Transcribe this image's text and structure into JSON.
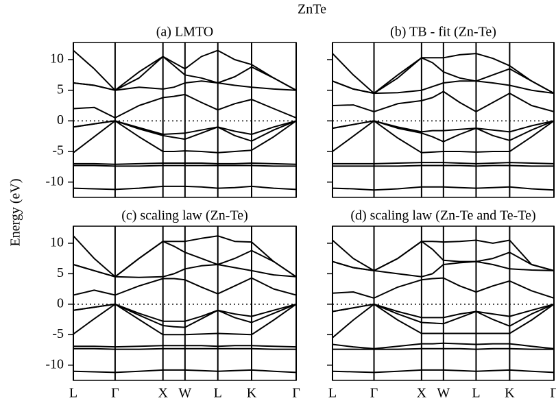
{
  "title": "ZnTe",
  "ylabel": "Energy (eV)",
  "chart_data": [
    {
      "type": "line",
      "title": "(a) LMTO",
      "line_color": "#000000",
      "zero_line": true,
      "x": [
        0,
        0.445,
        0.89,
        1.4,
        1.91,
        2.145,
        2.38,
        2.73,
        3.08,
        3.44,
        3.8,
        4.27,
        4.75
      ],
      "xlim": [
        0,
        4.75
      ],
      "ylim": [
        -12.5,
        12.8
      ],
      "xticks": [
        {
          "value": 0,
          "label": null
        },
        {
          "value": 0.89,
          "label": null
        },
        {
          "value": 1.91,
          "label": null
        },
        {
          "value": 2.38,
          "label": null
        },
        {
          "value": 3.08,
          "label": null
        },
        {
          "value": 3.8,
          "label": null
        },
        {
          "value": 4.75,
          "label": null
        }
      ],
      "yticks": [
        -10,
        -5,
        0,
        5,
        10
      ],
      "series": [
        {
          "values": [
            -11.0,
            -11.1,
            -11.2,
            -11.0,
            -10.7,
            -10.7,
            -10.7,
            -10.8,
            -11.0,
            -10.9,
            -10.7,
            -11.0,
            -11.2
          ]
        },
        {
          "values": [
            -7.0,
            -7.0,
            -7.1,
            -7.0,
            -6.9,
            -6.9,
            -6.9,
            -6.9,
            -7.0,
            -7.0,
            -6.9,
            -7.0,
            -7.1
          ]
        },
        {
          "values": [
            -7.3,
            -7.3,
            -7.4,
            -7.4,
            -7.3,
            -7.3,
            -7.3,
            -7.3,
            -7.3,
            -7.3,
            -7.3,
            -7.4,
            -7.4
          ]
        },
        {
          "values": [
            -5.2,
            -2.6,
            0,
            -2.6,
            -5.0,
            -5.0,
            -4.9,
            -5.0,
            -5.2,
            -5.0,
            -4.8,
            -2.6,
            0
          ]
        },
        {
          "values": [
            -1.0,
            -0.5,
            0,
            -1.3,
            -2.4,
            -2.7,
            -3.0,
            -2.0,
            -1.0,
            -2.4,
            -3.3,
            -1.5,
            0
          ]
        },
        {
          "values": [
            -1.0,
            -0.5,
            0,
            -1.1,
            -2.2,
            -2.1,
            -2.0,
            -1.5,
            -1.0,
            -1.7,
            -2.2,
            -1.0,
            0
          ]
        },
        {
          "values": [
            2.0,
            2.2,
            0.5,
            2.5,
            3.8,
            4.0,
            4.3,
            3.0,
            1.8,
            2.8,
            3.5,
            2.0,
            0.5
          ]
        },
        {
          "values": [
            6.2,
            5.8,
            5.0,
            5.5,
            5.2,
            5.5,
            6.2,
            6.5,
            6.2,
            5.8,
            5.5,
            5.2,
            5.0
          ]
        },
        {
          "values": [
            6.2,
            5.8,
            5.0,
            7.0,
            10.5,
            9.0,
            7.5,
            7.0,
            6.2,
            7.2,
            8.8,
            7.0,
            5.0
          ]
        },
        {
          "values": [
            11.5,
            8.5,
            5.0,
            8.0,
            10.5,
            9.5,
            8.5,
            10.5,
            11.5,
            10.0,
            9.2,
            7.0,
            5.0
          ]
        }
      ]
    },
    {
      "type": "line",
      "title": "(b) TB - fit (Zn-Te)",
      "line_color": "#000000",
      "zero_line": true,
      "x": [
        0,
        0.445,
        0.89,
        1.4,
        1.91,
        2.145,
        2.38,
        2.73,
        3.08,
        3.44,
        3.8,
        4.27,
        4.75
      ],
      "xlim": [
        0,
        4.75
      ],
      "ylim": [
        -12.5,
        12.8
      ],
      "xticks": [
        {
          "value": 0,
          "label": null
        },
        {
          "value": 0.89,
          "label": null
        },
        {
          "value": 1.91,
          "label": null
        },
        {
          "value": 2.38,
          "label": null
        },
        {
          "value": 3.08,
          "label": null
        },
        {
          "value": 3.8,
          "label": null
        },
        {
          "value": 4.75,
          "label": null
        }
      ],
      "yticks": [
        {
          "value": -10,
          "label": null
        },
        {
          "value": -5,
          "label": null
        },
        {
          "value": 0,
          "label": null
        },
        {
          "value": 5,
          "label": null
        },
        {
          "value": 10,
          "label": null
        }
      ],
      "series": [
        {
          "values": [
            -11.0,
            -11.1,
            -11.3,
            -11.1,
            -10.8,
            -10.8,
            -10.8,
            -10.9,
            -11.0,
            -10.9,
            -10.8,
            -11.1,
            -11.3
          ]
        },
        {
          "values": [
            -7.0,
            -7.0,
            -7.0,
            -6.9,
            -6.8,
            -6.8,
            -6.8,
            -6.9,
            -7.0,
            -6.9,
            -6.8,
            -6.9,
            -7.0
          ]
        },
        {
          "values": [
            -7.4,
            -7.4,
            -7.4,
            -7.4,
            -7.3,
            -7.3,
            -7.3,
            -7.3,
            -7.4,
            -7.3,
            -7.3,
            -7.4,
            -7.4
          ]
        },
        {
          "values": [
            -5.0,
            -2.5,
            0,
            -2.8,
            -5.2,
            -5.1,
            -5.0,
            -5.0,
            -5.1,
            -5.0,
            -5.0,
            -2.6,
            0
          ]
        },
        {
          "values": [
            -1.2,
            -0.6,
            0,
            -1.2,
            -2.0,
            -2.6,
            -3.4,
            -2.2,
            -1.2,
            -2.4,
            -3.2,
            -1.5,
            0
          ]
        },
        {
          "values": [
            -1.2,
            -0.6,
            0,
            -1.0,
            -1.8,
            -1.6,
            -1.6,
            -1.4,
            -1.2,
            -1.5,
            -1.8,
            -0.8,
            0
          ]
        },
        {
          "values": [
            2.5,
            2.6,
            1.5,
            2.8,
            3.3,
            3.8,
            4.8,
            3.0,
            1.5,
            3.0,
            4.5,
            2.5,
            1.5
          ]
        },
        {
          "values": [
            6.5,
            5.2,
            4.5,
            4.6,
            5.0,
            5.6,
            6.2,
            6.5,
            6.5,
            6.2,
            5.8,
            5.0,
            4.5
          ]
        },
        {
          "values": [
            6.5,
            5.2,
            4.5,
            7.0,
            10.3,
            9.5,
            8.0,
            7.0,
            6.5,
            7.5,
            8.5,
            6.5,
            4.5
          ]
        },
        {
          "values": [
            11.0,
            7.5,
            4.5,
            7.5,
            10.3,
            10.3,
            10.3,
            10.8,
            11.0,
            10.2,
            9.0,
            6.5,
            4.5
          ]
        }
      ]
    },
    {
      "type": "line",
      "title": "(c) scaling law (Zn-Te)",
      "line_color": "#000000",
      "zero_line": true,
      "x": [
        0,
        0.445,
        0.89,
        1.4,
        1.91,
        2.145,
        2.38,
        2.73,
        3.08,
        3.44,
        3.8,
        4.27,
        4.75
      ],
      "xlim": [
        0,
        4.75
      ],
      "ylim": [
        -12.5,
        12.8
      ],
      "xticks": [
        {
          "value": 0,
          "label": "L"
        },
        {
          "value": 0.89,
          "label": "Γ"
        },
        {
          "value": 1.91,
          "label": "X"
        },
        {
          "value": 2.38,
          "label": "W"
        },
        {
          "value": 3.08,
          "label": "L"
        },
        {
          "value": 3.8,
          "label": "K"
        },
        {
          "value": 4.75,
          "label": "Γ"
        }
      ],
      "yticks": [
        -10,
        -5,
        0,
        5,
        10
      ],
      "series": [
        {
          "values": [
            -11.0,
            -11.1,
            -11.2,
            -11.0,
            -10.8,
            -10.8,
            -10.8,
            -10.9,
            -11.0,
            -10.9,
            -10.8,
            -11.0,
            -11.2
          ]
        },
        {
          "values": [
            -6.9,
            -6.9,
            -7.0,
            -6.9,
            -6.8,
            -6.8,
            -6.8,
            -6.8,
            -6.9,
            -6.8,
            -6.8,
            -6.9,
            -7.0
          ]
        },
        {
          "values": [
            -7.3,
            -7.3,
            -7.4,
            -7.4,
            -7.3,
            -7.3,
            -7.3,
            -7.3,
            -7.3,
            -7.3,
            -7.3,
            -7.4,
            -7.4
          ]
        },
        {
          "values": [
            -4.9,
            -2.4,
            0,
            -2.5,
            -5.0,
            -5.0,
            -5.0,
            -4.9,
            -4.8,
            -4.9,
            -5.0,
            -2.6,
            0
          ]
        },
        {
          "values": [
            -1.0,
            -0.5,
            0,
            -1.8,
            -3.5,
            -3.7,
            -3.8,
            -2.4,
            -1.0,
            -2.2,
            -3.0,
            -1.5,
            0
          ]
        },
        {
          "values": [
            -1.0,
            -0.5,
            0,
            -1.5,
            -2.8,
            -2.8,
            -2.8,
            -2.0,
            -1.0,
            -1.6,
            -2.0,
            -1.0,
            0
          ]
        },
        {
          "values": [
            1.5,
            2.3,
            1.5,
            3.0,
            4.2,
            4.2,
            4.0,
            2.8,
            1.7,
            3.0,
            4.3,
            2.5,
            1.5
          ]
        },
        {
          "values": [
            6.5,
            5.5,
            4.5,
            4.4,
            4.5,
            5.0,
            5.8,
            6.3,
            6.5,
            6.0,
            5.5,
            4.8,
            4.5
          ]
        },
        {
          "values": [
            6.5,
            5.5,
            4.5,
            7.5,
            10.3,
            9.5,
            8.5,
            7.5,
            6.5,
            7.5,
            8.8,
            7.0,
            4.5
          ]
        },
        {
          "values": [
            11.2,
            7.5,
            4.5,
            7.5,
            10.3,
            10.3,
            10.3,
            10.8,
            11.2,
            10.3,
            10.2,
            7.0,
            4.5
          ]
        }
      ]
    },
    {
      "type": "line",
      "title": "(d) scaling law (Zn-Te and Te-Te)",
      "line_color": "#000000",
      "zero_line": true,
      "x": [
        0,
        0.445,
        0.89,
        1.4,
        1.91,
        2.145,
        2.38,
        2.73,
        3.08,
        3.44,
        3.8,
        4.27,
        4.75
      ],
      "xlim": [
        0,
        4.75
      ],
      "ylim": [
        -12.5,
        12.8
      ],
      "xticks": [
        {
          "value": 0,
          "label": "L"
        },
        {
          "value": 0.89,
          "label": "Γ"
        },
        {
          "value": 1.91,
          "label": "X"
        },
        {
          "value": 2.38,
          "label": "W"
        },
        {
          "value": 3.08,
          "label": "L"
        },
        {
          "value": 3.8,
          "label": "K"
        },
        {
          "value": 4.75,
          "label": "Γ"
        }
      ],
      "yticks": [
        {
          "value": -10,
          "label": null
        },
        {
          "value": -5,
          "label": null
        },
        {
          "value": 0,
          "label": null
        },
        {
          "value": 5,
          "label": null
        },
        {
          "value": 10,
          "label": null
        }
      ],
      "series": [
        {
          "values": [
            -11.0,
            -11.1,
            -11.2,
            -11.0,
            -10.8,
            -10.8,
            -10.8,
            -10.9,
            -11.0,
            -10.9,
            -10.8,
            -11.0,
            -11.2
          ]
        },
        {
          "values": [
            -6.6,
            -7.0,
            -7.3,
            -6.9,
            -6.5,
            -6.5,
            -6.4,
            -6.5,
            -6.6,
            -6.5,
            -6.5,
            -6.9,
            -7.3
          ]
        },
        {
          "values": [
            -7.4,
            -7.4,
            -7.4,
            -7.4,
            -7.3,
            -7.3,
            -7.3,
            -7.3,
            -7.4,
            -7.3,
            -7.3,
            -7.4,
            -7.4
          ]
        },
        {
          "values": [
            -5.5,
            -2.6,
            0,
            -2.6,
            -4.8,
            -4.8,
            -4.8,
            -4.8,
            -4.8,
            -4.8,
            -4.8,
            -2.6,
            0
          ]
        },
        {
          "values": [
            -1.2,
            -0.6,
            0,
            -1.6,
            -3.0,
            -3.1,
            -3.2,
            -2.2,
            -1.2,
            -2.5,
            -3.6,
            -1.6,
            0
          ]
        },
        {
          "values": [
            -1.2,
            -0.6,
            0,
            -1.2,
            -2.2,
            -2.2,
            -2.2,
            -1.6,
            -1.2,
            -1.6,
            -2.0,
            -1.0,
            0
          ]
        },
        {
          "values": [
            1.8,
            2.0,
            1.0,
            2.8,
            4.0,
            4.2,
            4.3,
            3.0,
            2.0,
            3.0,
            3.8,
            2.2,
            1.0
          ]
        },
        {
          "values": [
            7.0,
            6.0,
            5.5,
            5.0,
            4.5,
            5.0,
            6.5,
            6.8,
            7.0,
            6.5,
            5.8,
            5.6,
            5.5
          ]
        },
        {
          "values": [
            7.0,
            6.0,
            5.5,
            7.5,
            10.3,
            9.0,
            7.2,
            7.0,
            7.0,
            7.5,
            8.5,
            6.5,
            5.5
          ]
        },
        {
          "values": [
            10.5,
            7.5,
            5.5,
            7.5,
            10.3,
            10.3,
            10.2,
            10.3,
            10.5,
            10.0,
            10.5,
            6.5,
            5.5
          ]
        }
      ]
    }
  ]
}
